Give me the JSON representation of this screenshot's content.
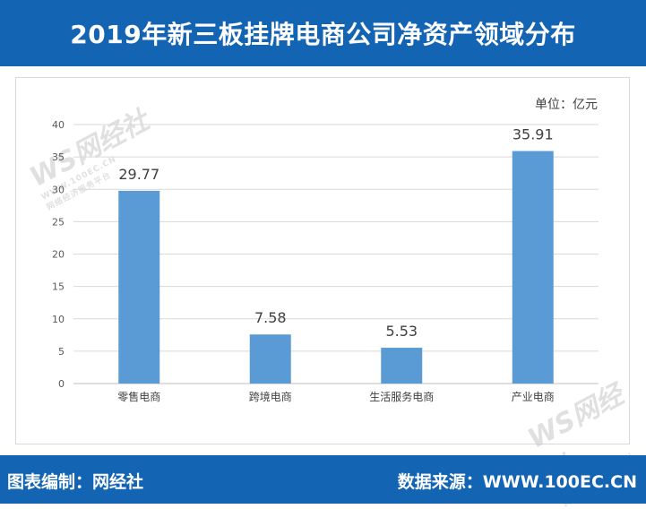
{
  "header": {
    "title": "2019年新三板挂牌电商公司净资产领域分布"
  },
  "unit_label": "单位：亿元",
  "watermark": {
    "logo": "WS网经社",
    "domain": "WWW.100EC.CN",
    "slogan": "网络经济服务平台"
  },
  "footer": {
    "editor": "图表编制：网经社",
    "source": "数据来源：WWW.100EC.CN"
  },
  "colors": {
    "header_bg": "#1464b4",
    "bar": "#5b9bd5",
    "grid": "#d9d9d9"
  },
  "chart_data": {
    "type": "bar",
    "categories": [
      "零售电商",
      "跨境电商",
      "生活服务电商",
      "产业电商"
    ],
    "values": [
      29.77,
      7.58,
      5.53,
      35.91
    ],
    "value_labels": [
      "29.77",
      "7.58",
      "5.53",
      "35.91"
    ],
    "yticks": [
      "0",
      "5",
      "10",
      "15",
      "20",
      "25",
      "30",
      "35",
      "40"
    ],
    "ylim": [
      0,
      40
    ],
    "grid": true,
    "legend": "none"
  }
}
